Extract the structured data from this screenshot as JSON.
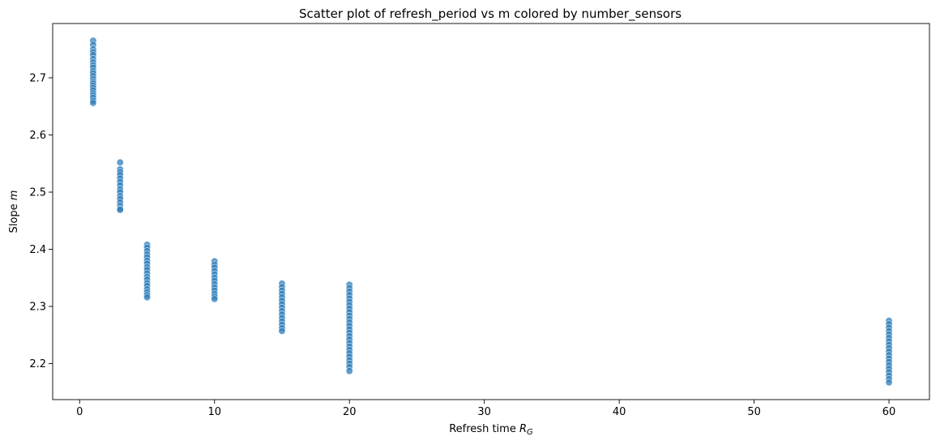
{
  "chart_data": {
    "type": "scatter",
    "title": "Scatter plot of refresh_period vs m colored by number_sensors",
    "xlabel": "Refresh time",
    "xlabel_sub": "G",
    "xlabel_var": "R",
    "ylabel": "Slope",
    "ylabel_var": "m",
    "xlim": [
      -2,
      63
    ],
    "ylim": [
      2.137,
      2.795
    ],
    "xticks": [
      0,
      10,
      20,
      30,
      40,
      50,
      60
    ],
    "yticks": [
      2.2,
      2.3,
      2.4,
      2.5,
      2.6,
      2.7
    ],
    "ytick_labels": [
      "2.2",
      "2.3",
      "2.4",
      "2.5",
      "2.6",
      "2.7"
    ],
    "grid": false,
    "color": "#2f7dbb",
    "groups": [
      {
        "x": 1,
        "y": [
          2.765,
          2.758,
          2.75,
          2.745,
          2.74,
          2.733,
          2.727,
          2.722,
          2.718,
          2.712,
          2.708,
          2.703,
          2.698,
          2.693,
          2.69,
          2.686,
          2.682,
          2.678,
          2.673,
          2.669,
          2.665,
          2.66,
          2.656
        ]
      },
      {
        "x": 3,
        "y": [
          2.552,
          2.54,
          2.535,
          2.53,
          2.524,
          2.518,
          2.512,
          2.505,
          2.5,
          2.493,
          2.488,
          2.482,
          2.476,
          2.471,
          2.469
        ]
      },
      {
        "x": 5,
        "y": [
          2.408,
          2.403,
          2.397,
          2.391,
          2.386,
          2.38,
          2.375,
          2.369,
          2.364,
          2.358,
          2.352,
          2.347,
          2.341,
          2.336,
          2.33,
          2.325,
          2.32,
          2.316
        ]
      },
      {
        "x": 10,
        "y": [
          2.379,
          2.373,
          2.368,
          2.362,
          2.356,
          2.35,
          2.345,
          2.339,
          2.333,
          2.328,
          2.322,
          2.317,
          2.313
        ]
      },
      {
        "x": 15,
        "y": [
          2.34,
          2.334,
          2.328,
          2.322,
          2.316,
          2.31,
          2.304,
          2.298,
          2.292,
          2.286,
          2.28,
          2.274,
          2.268,
          2.262,
          2.257
        ]
      },
      {
        "x": 20,
        "y": [
          2.338,
          2.332,
          2.326,
          2.32,
          2.314,
          2.308,
          2.302,
          2.296,
          2.29,
          2.284,
          2.278,
          2.272,
          2.266,
          2.26,
          2.254,
          2.248,
          2.242,
          2.236,
          2.23,
          2.224,
          2.218,
          2.212,
          2.206,
          2.2,
          2.194,
          2.187
        ]
      },
      {
        "x": 60,
        "y": [
          2.275,
          2.269,
          2.263,
          2.257,
          2.251,
          2.245,
          2.239,
          2.233,
          2.227,
          2.221,
          2.215,
          2.209,
          2.203,
          2.197,
          2.191,
          2.185,
          2.179,
          2.173,
          2.167
        ]
      }
    ]
  }
}
